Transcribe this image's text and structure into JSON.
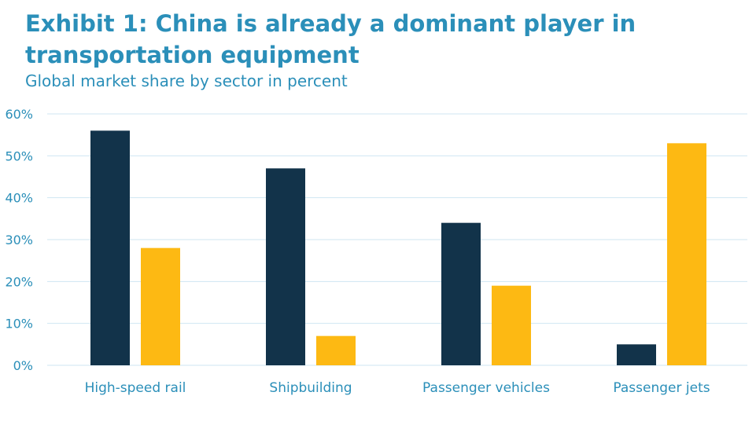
{
  "title": "Exhibit 1:  China is already a dominant player in transportation equipment",
  "subtitle": "Global market share by sector in percent",
  "colors": {
    "title": "#2b8fb9",
    "series_dark": "#12334a",
    "series_yellow": "#fdb913",
    "grid": "#cfe6f2"
  },
  "chart_data": {
    "type": "bar",
    "categories": [
      "High-speed rail",
      "Shipbuilding",
      "Passenger vehicles",
      "Passenger jets"
    ],
    "series": [
      {
        "values": [
          56,
          47,
          34,
          5
        ],
        "color": "#12334a"
      },
      {
        "values": [
          28,
          7,
          19,
          53
        ],
        "color": "#fdb913"
      }
    ],
    "yticks": [
      "0%",
      "10%",
      "20%",
      "30%",
      "40%",
      "50%",
      "60%"
    ],
    "ylim": [
      0,
      60
    ],
    "grid": true,
    "legend": "none",
    "xlabel": "",
    "ylabel": ""
  }
}
